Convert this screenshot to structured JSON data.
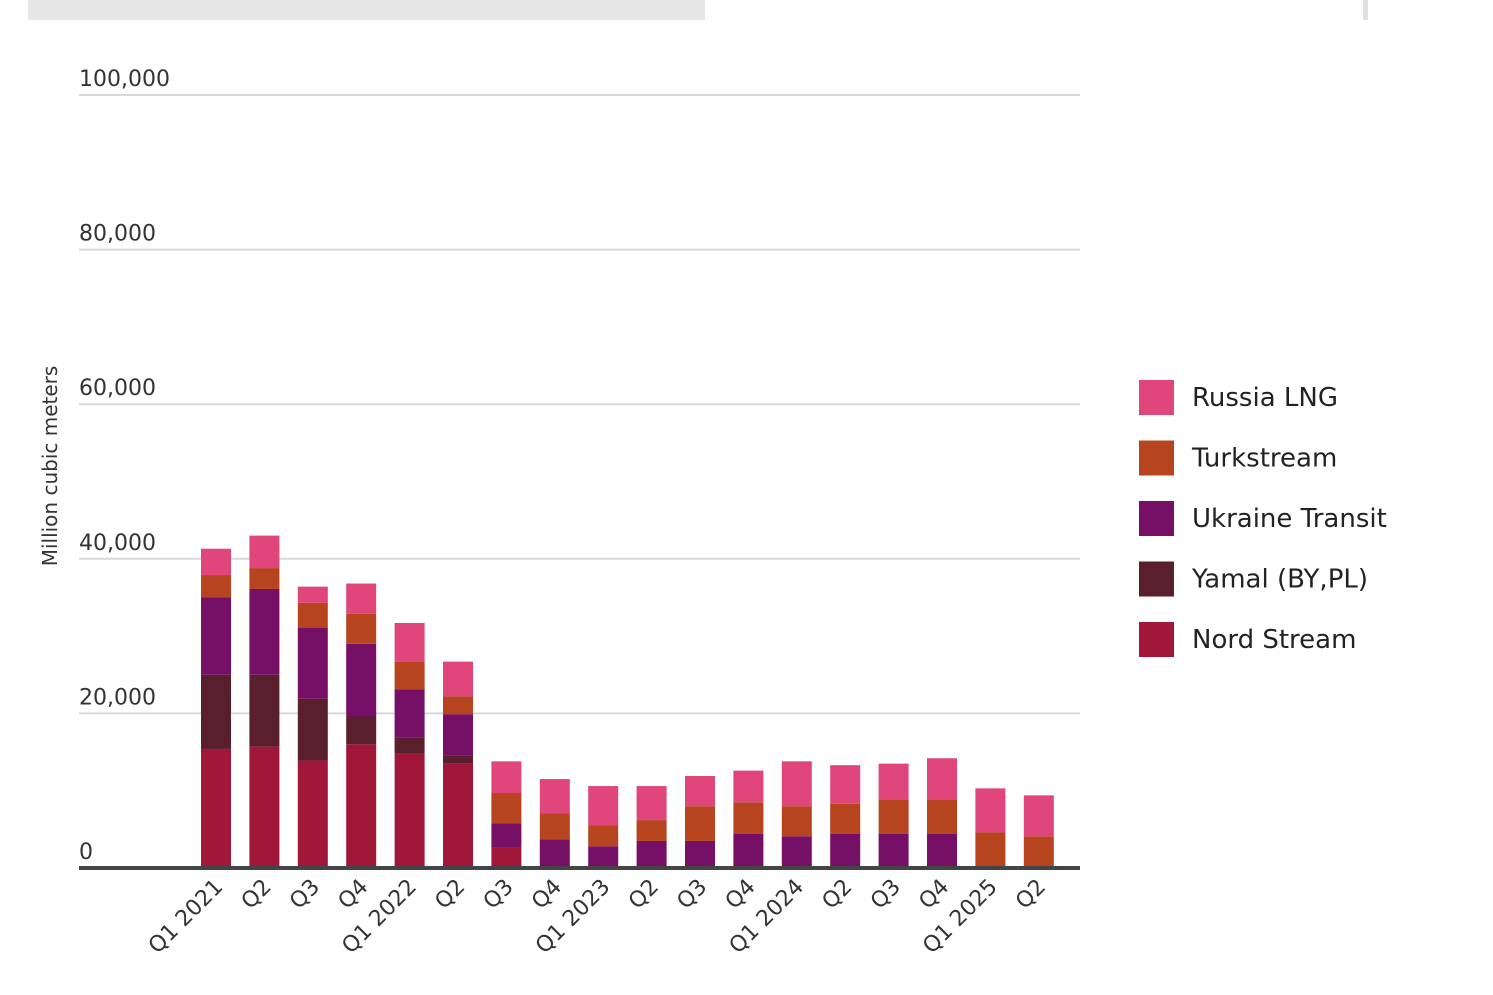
{
  "chart_data": {
    "type": "bar",
    "stacked": true,
    "title": "",
    "xlabel": "",
    "ylabel": "Million cubic meters",
    "ylim": [
      0,
      100000
    ],
    "yticks": [
      0,
      20000,
      40000,
      60000,
      80000,
      100000
    ],
    "ytick_labels": [
      "0",
      "20,000",
      "40,000",
      "60,000",
      "80,000",
      "100,000"
    ],
    "grid": true,
    "legend_position": "right",
    "categories": [
      "Q1 2021",
      "Q2",
      "Q3",
      "Q4",
      "Q1 2022",
      "Q2",
      "Q3",
      "Q4",
      "Q1 2023",
      "Q2",
      "Q3",
      "Q4",
      "Q1 2024",
      "Q2",
      "Q3",
      "Q4",
      "Q1 2025",
      "Q2"
    ],
    "series": [
      {
        "name": "Nord Stream",
        "color": "#a0173a",
        "values": [
          15400,
          15700,
          13900,
          16000,
          14800,
          13500,
          2600,
          0,
          0,
          0,
          0,
          0,
          0,
          0,
          0,
          0,
          0,
          0
        ]
      },
      {
        "name": "Yamal (BY,PL)",
        "color": "#5a1f2c",
        "values": [
          9600,
          9300,
          8000,
          3600,
          2100,
          1000,
          0,
          0,
          0,
          0,
          0,
          0,
          0,
          0,
          0,
          0,
          0,
          0
        ]
      },
      {
        "name": "Ukraine Transit",
        "color": "#760f66",
        "values": [
          10000,
          11100,
          9200,
          9400,
          6200,
          5400,
          3200,
          3700,
          2800,
          3500,
          3500,
          4400,
          4100,
          4400,
          4400,
          4400,
          0,
          0
        ]
      },
      {
        "name": "Turkstream",
        "color": "#b5441f",
        "values": [
          2900,
          2700,
          3200,
          3900,
          3600,
          2300,
          3900,
          3400,
          2700,
          2700,
          4500,
          4100,
          3900,
          3900,
          4400,
          4400,
          4600,
          4100
        ]
      },
      {
        "name": "Russia LNG",
        "color": "#e0457b",
        "values": [
          3400,
          4200,
          2100,
          3900,
          5000,
          4500,
          4100,
          4400,
          5100,
          4400,
          3900,
          4100,
          5800,
          5000,
          4700,
          5400,
          5700,
          5300
        ]
      }
    ]
  }
}
